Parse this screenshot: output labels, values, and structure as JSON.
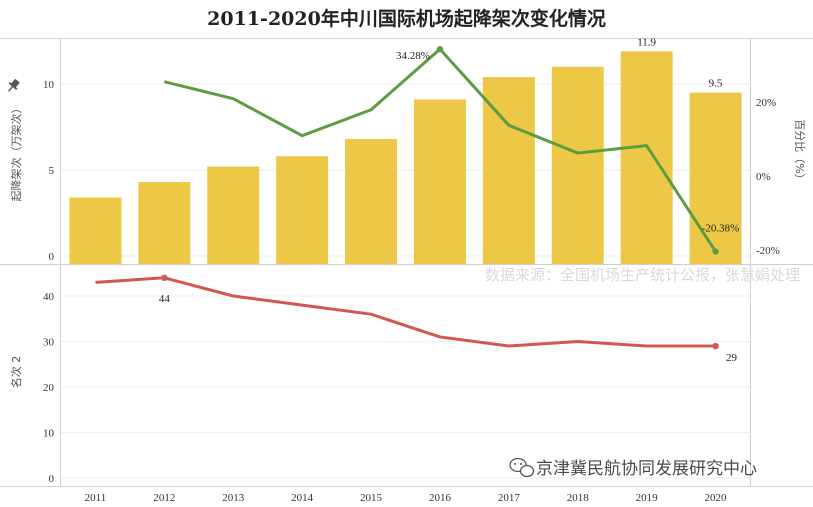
{
  "chart_data": [
    {
      "type": "bar",
      "title": "2011-2020年中川国际机场起降架次变化情况",
      "categories": [
        "2011",
        "2012",
        "2013",
        "2014",
        "2015",
        "2016",
        "2017",
        "2018",
        "2019",
        "2020"
      ],
      "series": [
        {
          "name": "起降架次（万架次）",
          "values": [
            3.4,
            4.3,
            5.2,
            5.8,
            6.8,
            9.1,
            10.4,
            11.0,
            11.9,
            9.5
          ]
        }
      ],
      "ylabel": "起降架次（万架次）",
      "ylim": [
        0,
        12.4
      ],
      "yticks": [
        0,
        5,
        10
      ],
      "bar_color": "#ecc846",
      "data_labels": {
        "8": "11.9",
        "9": "9.5"
      }
    },
    {
      "type": "line",
      "categories": [
        "2012",
        "2013",
        "2014",
        "2015",
        "2016",
        "2017",
        "2018",
        "2019",
        "2020"
      ],
      "series": [
        {
          "name": "百分比（%）",
          "values": [
            25.5,
            20.9,
            10.9,
            17.9,
            34.28,
            13.7,
            6.2,
            8.2,
            -20.38
          ]
        }
      ],
      "y2label": "百分比（%）",
      "y2lim": [
        -20.38,
        34.28
      ],
      "y2ticks": [
        "-20%",
        "0%",
        "20%"
      ],
      "line_color": "#5d9c41",
      "data_labels": {
        "4": "34.28%",
        "8": "-20.38%"
      }
    },
    {
      "type": "line",
      "categories": [
        "2011",
        "2012",
        "2013",
        "2014",
        "2015",
        "2016",
        "2017",
        "2018",
        "2019",
        "2020"
      ],
      "series": [
        {
          "name": "名次 2",
          "values": [
            43,
            44,
            40,
            38,
            36,
            31,
            29,
            30,
            29,
            29
          ]
        }
      ],
      "ylabel": "名次 2",
      "ylim": [
        0,
        47.2
      ],
      "yticks": [
        0,
        10,
        20,
        30,
        40
      ],
      "line_color": "#d25754",
      "data_labels": {
        "1": "44",
        "9": "29"
      }
    }
  ],
  "source_note": "数据来源：全国机场生产统计公报，张慧娟处理",
  "watermark": "京津冀民航协同发展研究中心",
  "pin_icon": "pin-icon"
}
